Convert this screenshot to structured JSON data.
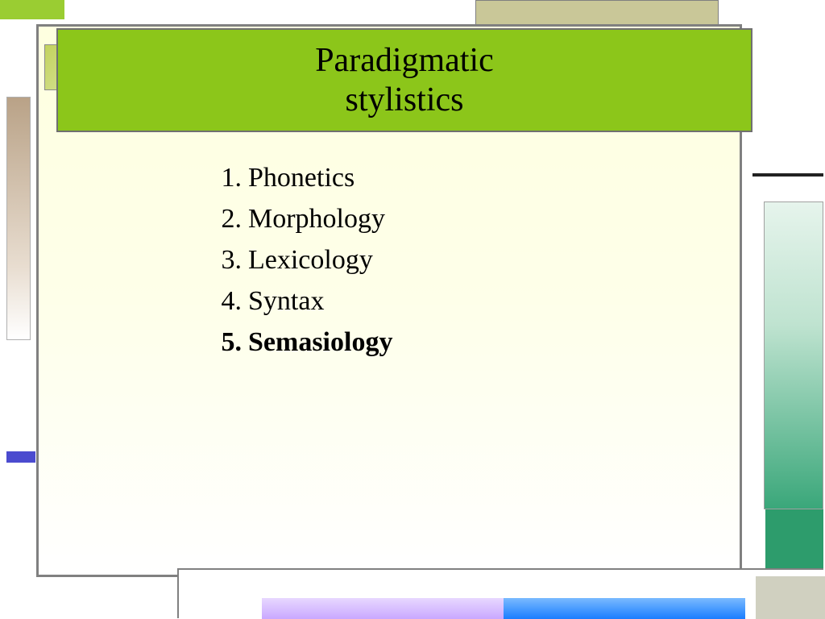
{
  "colors": {
    "title_bg": "#8cc61a",
    "panel_top": "#feffe0",
    "panel_bottom": "#ffffff",
    "border": "#808080",
    "accent_olive": "#c3d35e",
    "left_tan": "#b9a287",
    "left_blue": "#4b4bcf",
    "right_green_start": "#e6f4ec",
    "right_green_end": "#3aa77a",
    "bottom_purple": "#c9a8ff",
    "bottom_blue": "#1a7dff",
    "text": "#000000"
  },
  "title": {
    "line1": "Paradigmatic",
    "line2": "stylistics",
    "fontsize": 42,
    "fontweight": 400
  },
  "list": {
    "fontsize": 34,
    "items": [
      {
        "n": "1.",
        "text": "Phonetics",
        "bold": false
      },
      {
        "n": "2.",
        "text": "Morphology",
        "bold": false
      },
      {
        "n": "3.",
        "text": "Lexicology",
        "bold": false
      },
      {
        "n": "4.",
        "text": "Syntax",
        "bold": false
      },
      {
        "n": "5.",
        "text": "Semasiology",
        "bold": true
      }
    ]
  }
}
